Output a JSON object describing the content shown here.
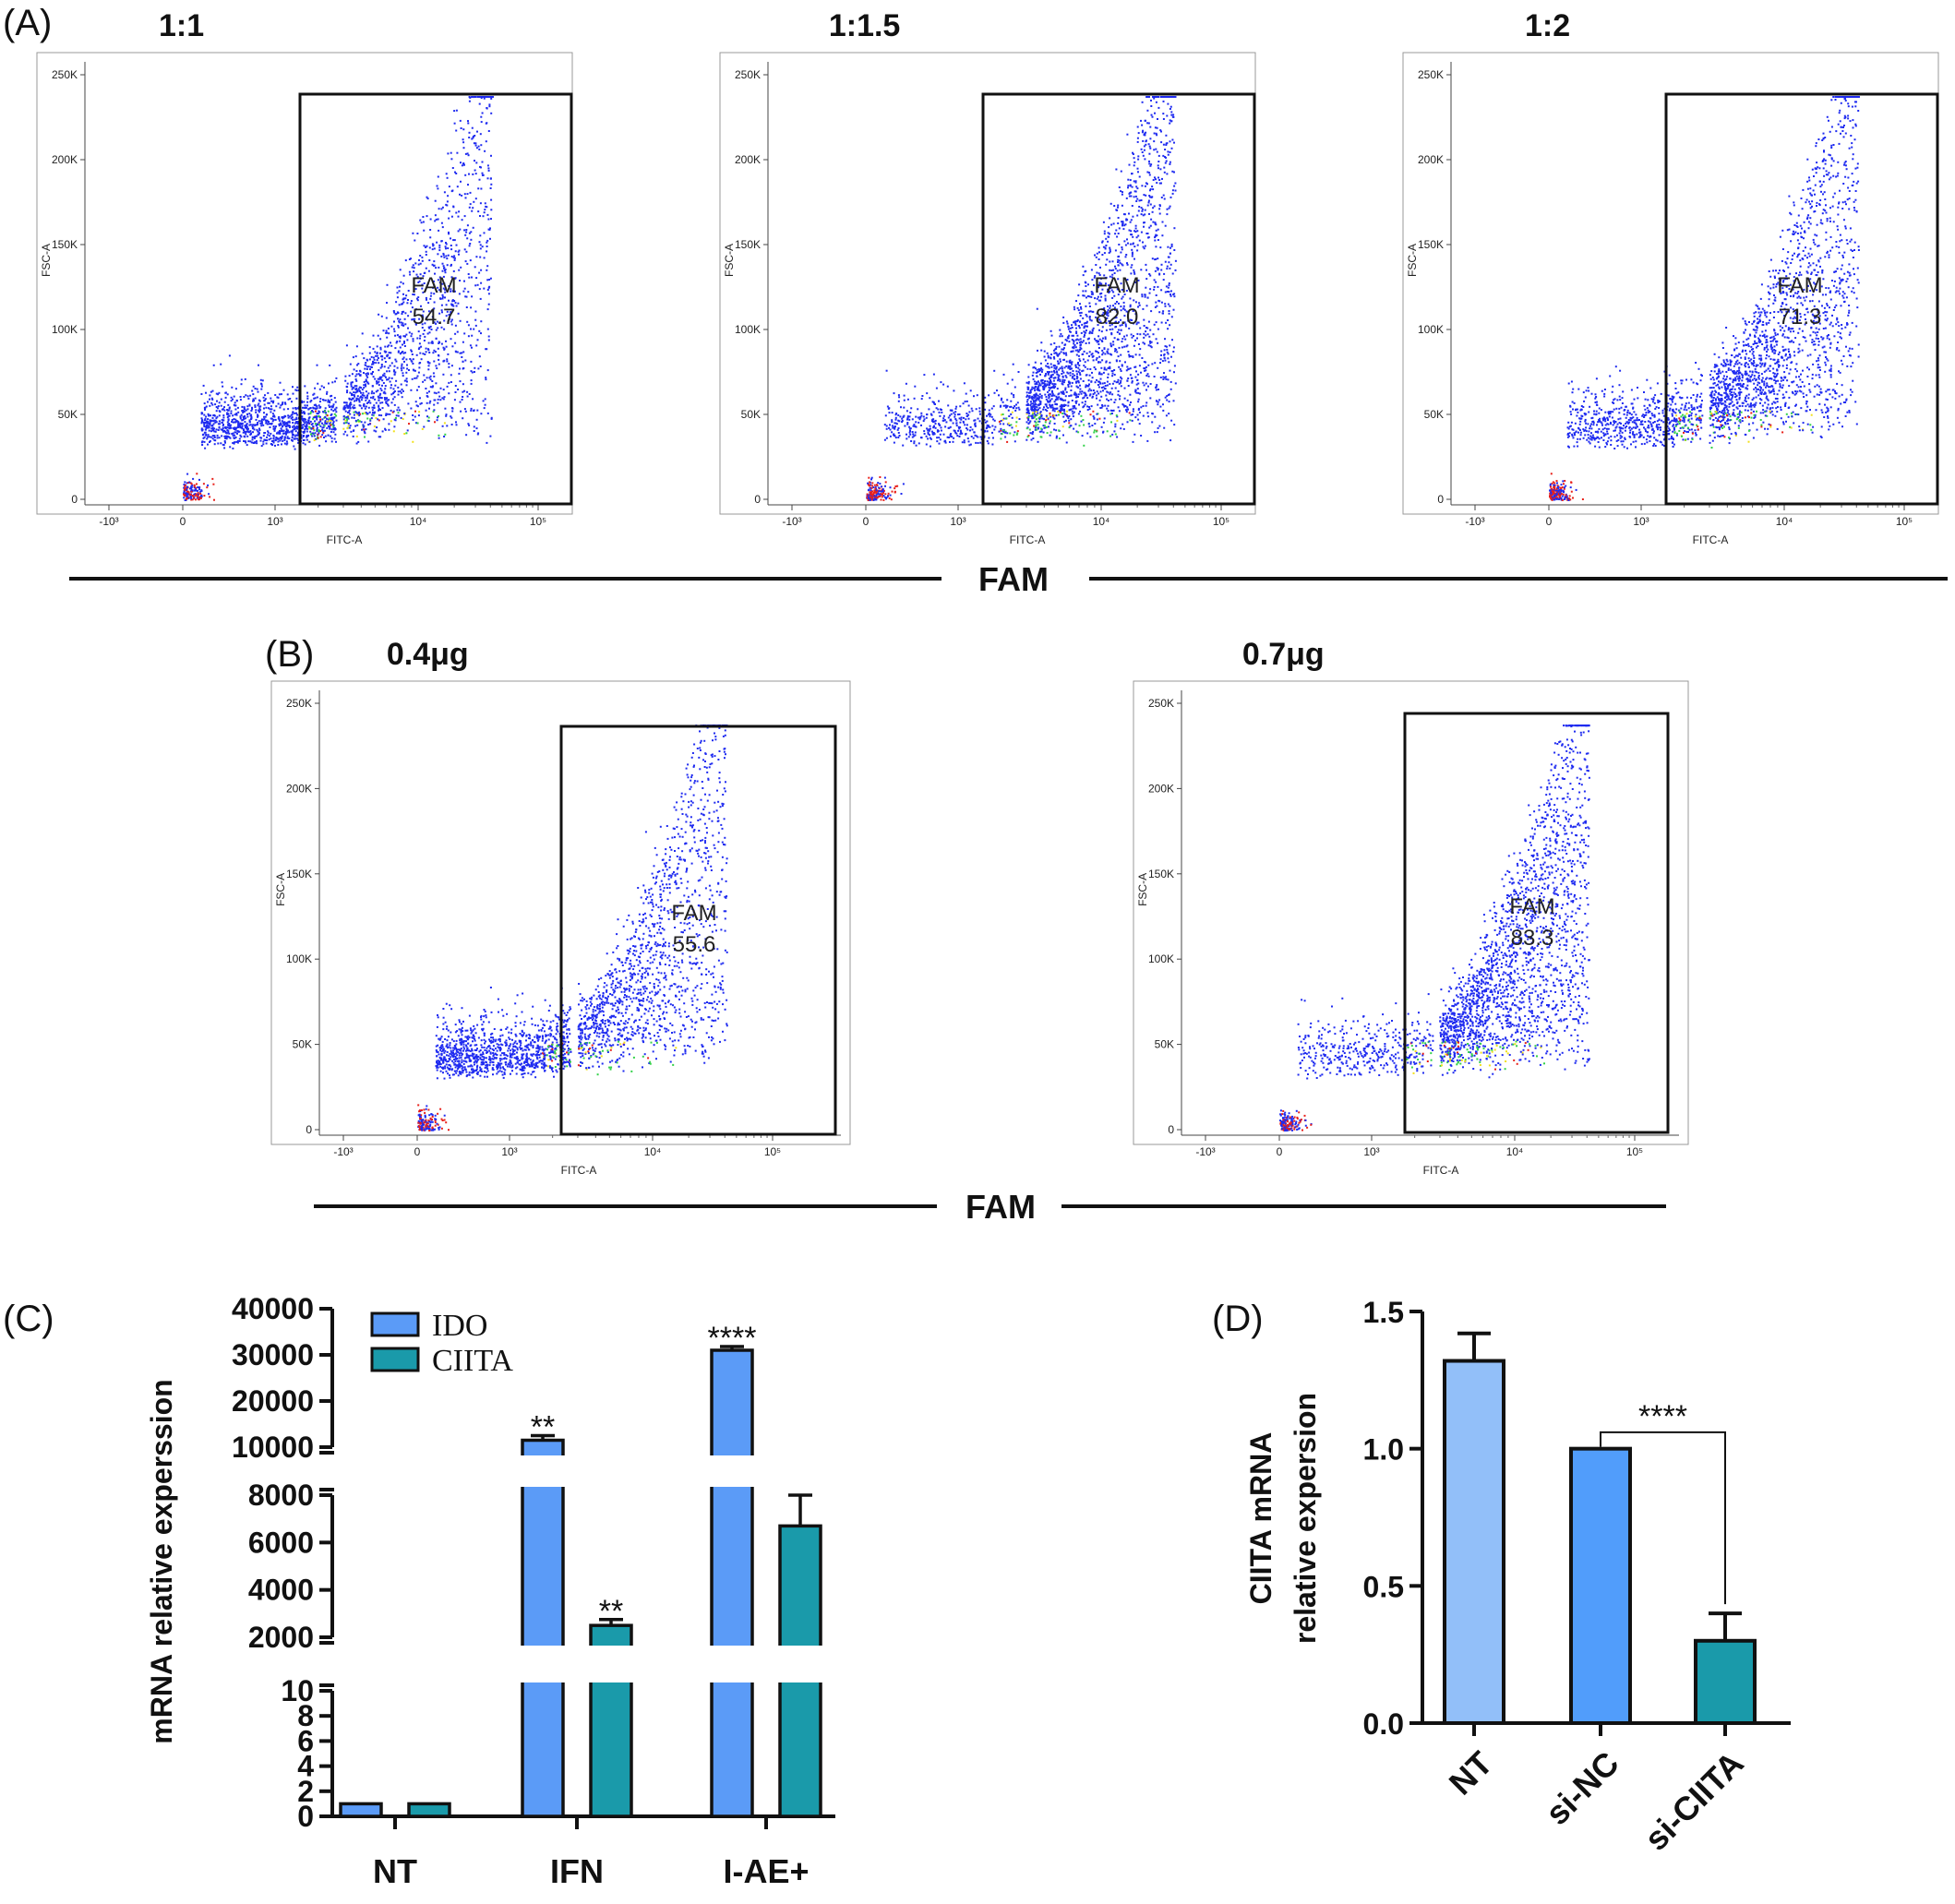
{
  "panels": {
    "A": {
      "letter": "(A)",
      "group_label": "FAM",
      "plots": [
        {
          "title": "1:1",
          "gate_label": "FAM",
          "gate_value": "54.7",
          "percent": 54.7
        },
        {
          "title": "1:1.5",
          "gate_label": "FAM",
          "gate_value": "82.0",
          "percent": 82.0
        },
        {
          "title": "1:2",
          "gate_label": "FAM",
          "gate_value": "71.3",
          "percent": 71.3
        }
      ]
    },
    "B": {
      "letter": "(B)",
      "group_label": "FAM",
      "plots": [
        {
          "title": "0.4μg",
          "gate_label": "FAM",
          "gate_value": "55.6",
          "percent": 55.6
        },
        {
          "title": "0.7μg",
          "gate_label": "FAM",
          "gate_value": "83.3",
          "percent": 83.3
        }
      ]
    },
    "C": {
      "letter": "(C)"
    },
    "D": {
      "letter": "(D)"
    }
  },
  "flow_axes": {
    "xlabel": "FITC-A",
    "ylabel": "FSC-A",
    "x_ticks": [
      "-10³",
      "0",
      "10³",
      "10⁴",
      "10⁵"
    ],
    "y_ticks": [
      "250K",
      "200K",
      "150K",
      "100K",
      "50K",
      "0"
    ]
  },
  "chart_data": [
    {
      "panel": "A",
      "type": "scatter",
      "plots": [
        {
          "title": "1:1",
          "gated_percent": 54.7
        },
        {
          "title": "1:1.5",
          "gated_percent": 82.0
        },
        {
          "title": "1:2",
          "gated_percent": 71.3
        }
      ],
      "xlabel": "FITC-A",
      "ylabel": "FSC-A"
    },
    {
      "panel": "B",
      "type": "scatter",
      "plots": [
        {
          "title": "0.4μg",
          "gated_percent": 55.6
        },
        {
          "title": "0.7μg",
          "gated_percent": 83.3
        }
      ],
      "xlabel": "FITC-A",
      "ylabel": "FSC-A"
    },
    {
      "panel": "C",
      "type": "bar",
      "categories": [
        "NT",
        "IFN",
        "I-AE+"
      ],
      "series": [
        {
          "name": "IDO",
          "color": "#5b9bf7",
          "values": [
            1,
            11500,
            31000
          ],
          "errors": [
            0,
            1000,
            800
          ],
          "significance": [
            "",
            "**",
            "****"
          ]
        },
        {
          "name": "CIITA",
          "color": "#1a9aaa",
          "values": [
            1,
            2500,
            6700
          ],
          "errors": [
            0,
            250,
            1300
          ],
          "significance": [
            "",
            "**",
            "*"
          ]
        }
      ],
      "ylabel": "mRNA relative experssion",
      "y_ticks": [
        "40000",
        "30000",
        "20000",
        "10000",
        "8000",
        "6000",
        "4000",
        "2000",
        "10",
        "8",
        "6",
        "4",
        "2",
        "0"
      ]
    },
    {
      "panel": "D",
      "type": "bar",
      "categories": [
        "NT",
        "si-NC",
        "si-CIITA"
      ],
      "values": [
        1.32,
        1.0,
        0.3
      ],
      "errors": [
        0.1,
        0,
        0.1
      ],
      "colors": [
        "#92bff9",
        "#519dfb",
        "#1a9aaa"
      ],
      "ylabel": "CIITA mRNA relative expersion",
      "ylim": [
        0,
        1.5
      ],
      "y_ticks": [
        "0.0",
        "0.5",
        "1.0",
        "1.5"
      ],
      "significance": {
        "between": [
          "si-NC",
          "si-CIITA"
        ],
        "label": "****"
      }
    }
  ]
}
